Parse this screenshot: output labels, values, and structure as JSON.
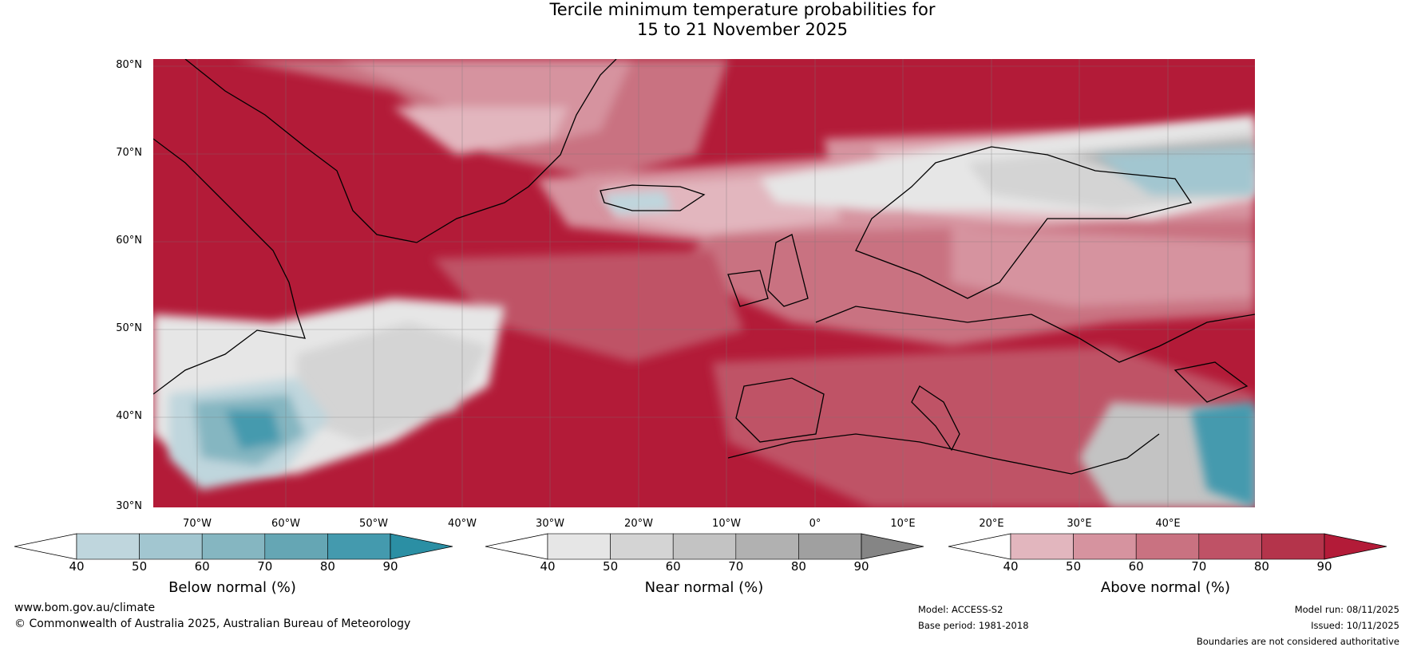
{
  "title": {
    "line1": "Tercile minimum temperature probabilities for",
    "line2": "15 to 21 November 2025"
  },
  "map": {
    "lat_labels": [
      "80°N",
      "70°N",
      "60°N",
      "50°N",
      "40°N",
      "30°N"
    ],
    "lon_labels": [
      "70°W",
      "60°W",
      "50°W",
      "40°W",
      "30°W",
      "20°W",
      "10°W",
      "0°",
      "10°E",
      "20°E",
      "30°E",
      "40°E"
    ]
  },
  "colorbars": [
    {
      "title": "Below normal (%)",
      "ticks": [
        "40",
        "50",
        "60",
        "70",
        "80",
        "90"
      ],
      "colors": [
        "#bfd6dd",
        "#a2c6d0",
        "#85b6c1",
        "#65a6b4",
        "#449aae"
      ],
      "extend_color": "#2b8fa4"
    },
    {
      "title": "Near normal (%)",
      "ticks": [
        "40",
        "50",
        "60",
        "70",
        "80",
        "90"
      ],
      "colors": [
        "#e6e6e6",
        "#d4d4d4",
        "#c3c3c3",
        "#b1b1b1",
        "#a0a0a0"
      ],
      "extend_color": "#858585"
    },
    {
      "title": "Above normal (%)",
      "ticks": [
        "40",
        "50",
        "60",
        "70",
        "80",
        "90"
      ],
      "colors": [
        "#e2b6be",
        "#d6939f",
        "#c97281",
        "#bf5266",
        "#b4344b"
      ],
      "extend_color": "#b31b38"
    }
  ],
  "footer": {
    "website": "www.bom.gov.au/climate",
    "copyright": "© Commonwealth of Australia 2025, Australian Bureau of Meteorology",
    "model": "Model: ACCESS-S2",
    "base_period": "Base period: 1981-2018",
    "model_run": "Model run: 08/11/2025",
    "issued": "Issued: 10/11/2025",
    "disclaimer": "Boundaries are not considered authoritative"
  }
}
